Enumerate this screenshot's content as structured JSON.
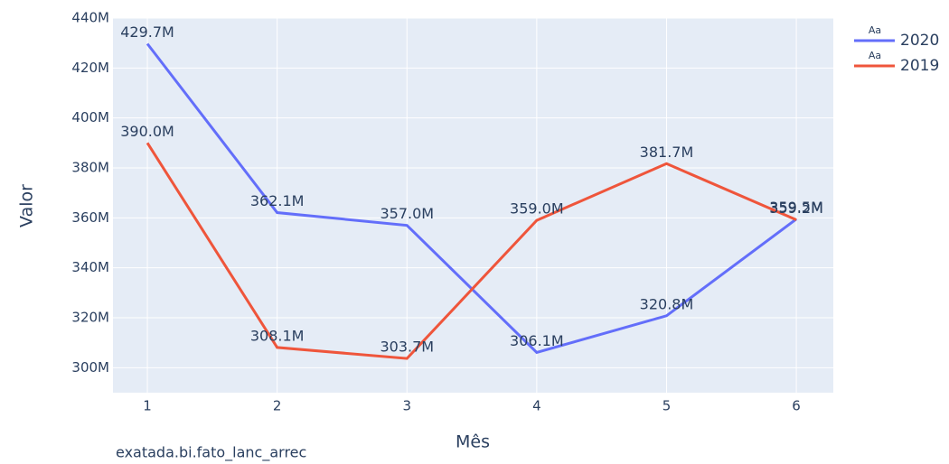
{
  "chart_data": {
    "type": "line",
    "x_label": "Mês",
    "y_label": "Valor",
    "annotation": "exatada.bi.fato_lanc_arrec",
    "legend_marker_text": "Aa",
    "x": [
      1,
      2,
      3,
      4,
      5,
      6
    ],
    "series": [
      {
        "name": "2020",
        "color": "#636efa",
        "values": [
          429.7,
          362.1,
          357.0,
          306.1,
          320.8,
          359.5
        ],
        "value_labels": [
          "429.7M",
          "362.1M",
          "357.0M",
          "306.1M",
          "320.8M",
          "359.5M"
        ]
      },
      {
        "name": "2019",
        "color": "#ef553b",
        "values": [
          390.0,
          308.1,
          303.7,
          359.0,
          381.7,
          359.2
        ],
        "value_labels": [
          "390.0M",
          "308.1M",
          "303.7M",
          "359.0M",
          "381.7M",
          "359.2M"
        ]
      }
    ],
    "xlim": [
      0.735,
      6.285
    ],
    "xticks": [
      1,
      2,
      3,
      4,
      5,
      6
    ],
    "ylim": [
      290,
      440
    ],
    "yticks": [
      {
        "value": 300,
        "label": "300M"
      },
      {
        "value": 320,
        "label": "320M"
      },
      {
        "value": 340,
        "label": "340M"
      },
      {
        "value": 360,
        "label": "360M"
      },
      {
        "value": 380,
        "label": "380M"
      },
      {
        "value": 400,
        "label": "400M"
      },
      {
        "value": 420,
        "label": "420M"
      },
      {
        "value": 440,
        "label": "440M"
      }
    ],
    "grid": true,
    "legend_position": "top-right",
    "background": "#e5ecf6"
  }
}
